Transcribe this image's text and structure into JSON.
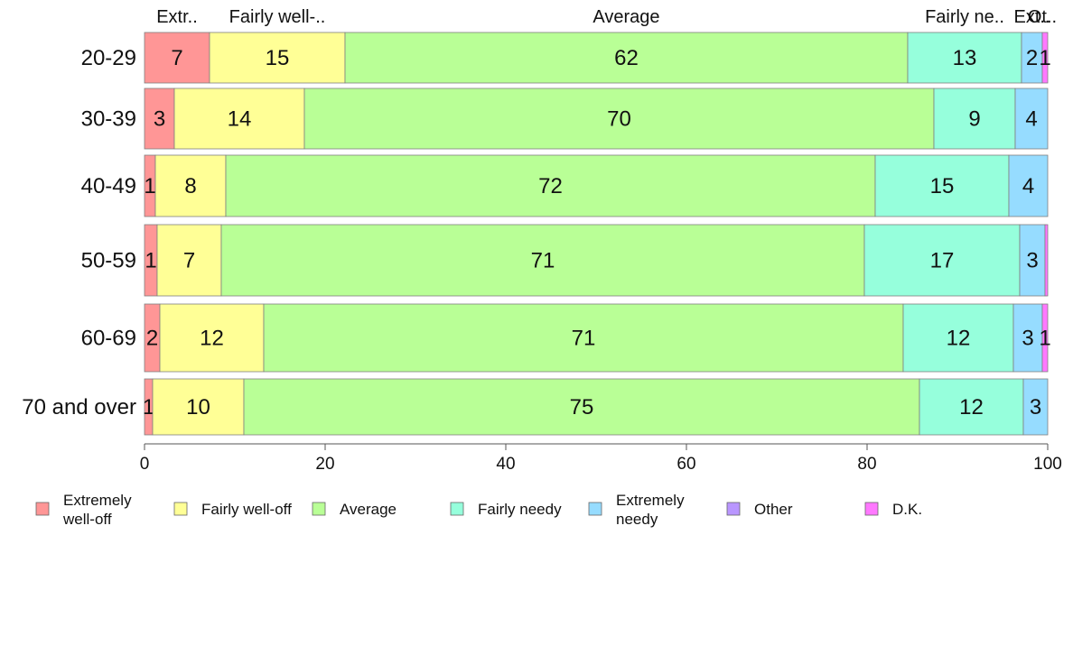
{
  "chart_data": {
    "type": "bar",
    "orientation": "horizontal",
    "stacked": true,
    "percent_stacked": true,
    "categories": [
      "20-29",
      "30-39",
      "40-49",
      "50-59",
      "60-69",
      "70 and over"
    ],
    "series": [
      {
        "name": "Extremely well-off",
        "color": "#ff9696",
        "values": [
          7.2,
          3.3,
          1.2,
          1.4,
          1.7,
          0.9
        ]
      },
      {
        "name": "Fairly well-off",
        "color": "#ffff96",
        "values": [
          15.0,
          14.4,
          7.8,
          7.1,
          11.5,
          10.1
        ]
      },
      {
        "name": "Average",
        "color": "#b9ff96",
        "values": [
          62.3,
          69.7,
          71.9,
          71.2,
          70.8,
          74.8
        ]
      },
      {
        "name": "Fairly needy",
        "color": "#96ffdc",
        "values": [
          12.6,
          9.0,
          14.8,
          17.2,
          12.2,
          11.5
        ]
      },
      {
        "name": "Extremely needy",
        "color": "#96dcff",
        "values": [
          2.3,
          3.6,
          4.3,
          2.8,
          3.2,
          2.7
        ]
      },
      {
        "name": "Other",
        "color": "#b996ff",
        "values": [
          0,
          0,
          0,
          0,
          0,
          0
        ]
      },
      {
        "name": "D.K.",
        "color": "#ff78ff",
        "values": [
          0.6,
          0,
          0,
          0.3,
          0.6,
          0
        ]
      }
    ],
    "data_labels": [
      [
        "7",
        "15",
        "62",
        "13",
        "2",
        "",
        "1"
      ],
      [
        "3",
        "14",
        "70",
        "9",
        "4",
        "",
        ""
      ],
      [
        "1",
        "8",
        "72",
        "15",
        "4",
        "",
        ""
      ],
      [
        "1",
        "7",
        "71",
        "17",
        "3",
        "",
        ""
      ],
      [
        "2",
        "12",
        "71",
        "12",
        "3",
        "",
        "1"
      ],
      [
        "1",
        "10",
        "75",
        "12",
        "3",
        "",
        ""
      ]
    ],
    "top_labels": [
      "Extr..",
      "Fairly well-..",
      "Average",
      "Fairly ne..",
      "Ext..",
      "Ot.."
    ],
    "xlim": [
      0,
      100
    ],
    "x_ticks": [
      0,
      20,
      40,
      60,
      80,
      100
    ],
    "grid": false,
    "legend": {
      "position": "bottom",
      "items": [
        {
          "lines": [
            "Extremely",
            "well-off"
          ]
        },
        {
          "lines": [
            "Fairly well-off"
          ]
        },
        {
          "lines": [
            "Average"
          ]
        },
        {
          "lines": [
            "Fairly needy"
          ]
        },
        {
          "lines": [
            "Extremely",
            "needy"
          ]
        },
        {
          "lines": [
            "Other"
          ]
        },
        {
          "lines": [
            "D.K."
          ]
        }
      ]
    }
  }
}
